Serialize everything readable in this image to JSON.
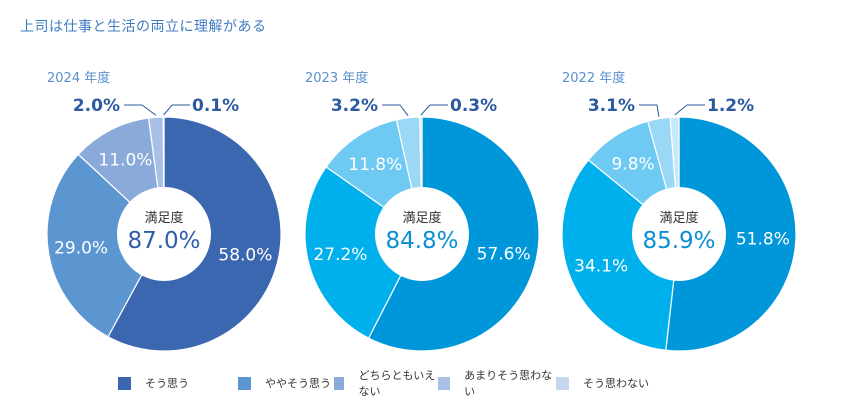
{
  "title": "上司は仕事と生活の両立に理解がある",
  "legend": [
    {
      "label": "そう思う",
      "color": "#3b67b1"
    },
    {
      "label": "ややそう思う",
      "color": "#5c96d0"
    },
    {
      "label": "どちらともいえない",
      "color": "#8aaad9"
    },
    {
      "label": "あまりそう思わない",
      "color": "#a8c0e6"
    },
    {
      "label": "そう思わない",
      "color": "#c5d6ef"
    }
  ],
  "chart_data": [
    {
      "type": "pie",
      "title": "2024 年度",
      "categories": [
        "そう思う",
        "ややそう思う",
        "どちらともいえない",
        "あまりそう思わない",
        "そう思わない"
      ],
      "values": [
        58.0,
        29.0,
        11.0,
        2.0,
        0.1
      ],
      "labels": [
        "58.0%",
        "29.0%",
        "11.0%",
        "2.0%",
        "0.1%"
      ],
      "colors": [
        "#3b67b1",
        "#5c96d0",
        "#8aaad9",
        "#a8c0e6",
        "#c5d6ef"
      ],
      "center_caption": "満足度",
      "center_value": "87.0%",
      "center_color": "#2f5ea8"
    },
    {
      "type": "pie",
      "title": "2023 年度",
      "categories": [
        "そう思う",
        "ややそう思う",
        "どちらともいえない",
        "あまりそう思わない",
        "そう思わない"
      ],
      "values": [
        57.6,
        27.2,
        11.8,
        3.2,
        0.3
      ],
      "labels": [
        "57.6%",
        "27.2%",
        "11.8%",
        "3.2%",
        "0.3%"
      ],
      "colors": [
        "#0097da",
        "#00b0ec",
        "#6ecaf2",
        "#9ad8f5",
        "#c6e8f9"
      ],
      "center_caption": "満足度",
      "center_value": "84.8%",
      "center_color": "#0a8fd3"
    },
    {
      "type": "pie",
      "title": "2022 年度",
      "categories": [
        "そう思う",
        "ややそう思う",
        "どちらともいえない",
        "あまりそう思わない",
        "そう思わない"
      ],
      "values": [
        51.8,
        34.1,
        9.8,
        3.1,
        1.2
      ],
      "labels": [
        "51.8%",
        "34.1%",
        "9.8%",
        "3.1%",
        "1.2%"
      ],
      "colors": [
        "#0097da",
        "#00b0ec",
        "#6ecaf2",
        "#9ad8f5",
        "#c6e8f9"
      ],
      "center_caption": "満足度",
      "center_value": "85.9%",
      "center_color": "#0a8fd3"
    }
  ]
}
